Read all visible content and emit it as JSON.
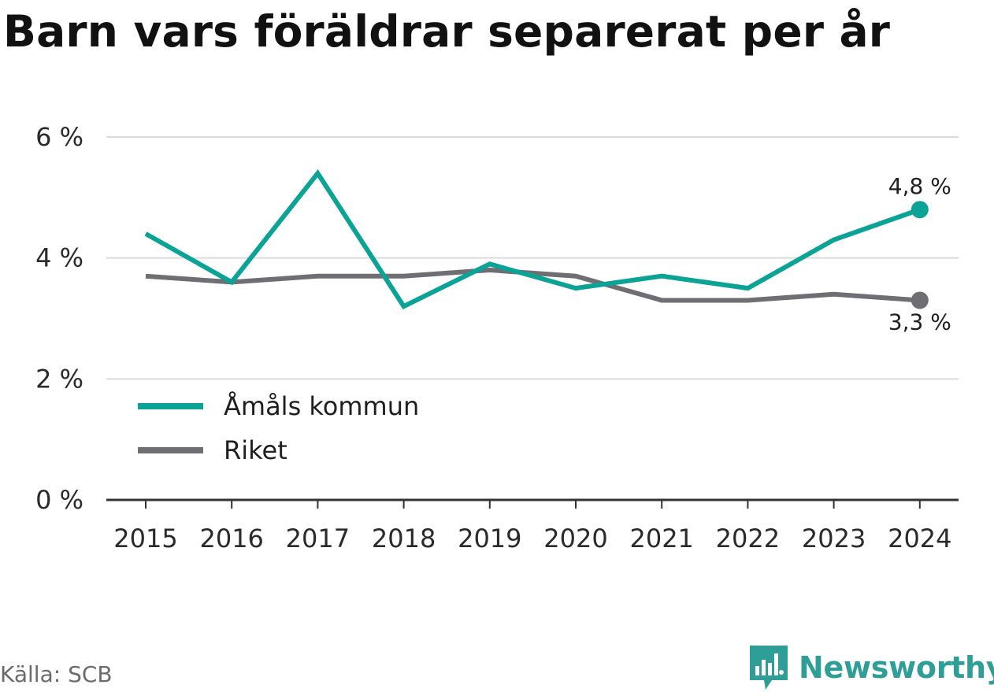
{
  "title": "Barn vars föräldrar separerat per år",
  "source": "Källa: SCB",
  "brand": "Newsworthy",
  "chart_data": {
    "type": "line",
    "title": "Barn vars föräldrar separerat per år",
    "x": [
      "2015",
      "2016",
      "2017",
      "2018",
      "2019",
      "2020",
      "2021",
      "2022",
      "2023",
      "2024"
    ],
    "ylim": [
      0,
      6
    ],
    "yticks": [
      0,
      2,
      4,
      6
    ],
    "ytick_labels": [
      "0 %",
      "2 %",
      "4 %",
      "6 %"
    ],
    "grid": true,
    "legend_placement": "bottom-left",
    "series": [
      {
        "name": "Åmåls kommun",
        "color": "#0ba396",
        "values": [
          4.4,
          3.6,
          5.4,
          3.2,
          3.9,
          3.5,
          3.7,
          3.5,
          4.3,
          4.8
        ],
        "end_label": "4,8 %"
      },
      {
        "name": "Riket",
        "color": "#6f6e73",
        "values": [
          3.7,
          3.6,
          3.7,
          3.7,
          3.8,
          3.7,
          3.3,
          3.3,
          3.4,
          3.3
        ],
        "end_label": "3,3 %"
      }
    ]
  }
}
